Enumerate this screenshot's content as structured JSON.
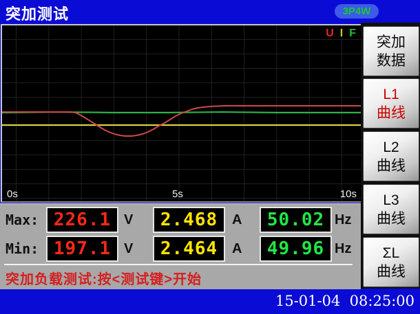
{
  "header": {
    "title": "突加测试",
    "badge": "3P4W"
  },
  "colors": {
    "background": "#0b0bd6",
    "panel_gray": "#a8a8a8",
    "status_red": "#d42020",
    "active_button_red": "#cc0000",
    "badge_bg": "#3d5ae8",
    "badge_text": "#18c838"
  },
  "chart": {
    "legend": [
      {
        "label": "U",
        "color": "#e02828"
      },
      {
        "label": "I",
        "color": "#c8c818"
      },
      {
        "label": "F",
        "color": "#18c040"
      }
    ],
    "x_ticks": [
      "0s",
      "5s",
      "10s"
    ]
  },
  "chart_data": {
    "type": "line",
    "title": "突加测试 waveform (L1)",
    "x_axis": {
      "ticks": [
        "0s",
        "5s",
        "10s"
      ],
      "range_seconds": [
        0,
        10
      ]
    },
    "note": "points are [x,y] in 522x256 plot pixel space, y=0 at top; U dips from ~226V to ~197V around t=3.5s then recovers, I and F stay flat",
    "series": [
      {
        "name": "F",
        "color": "#28b848",
        "width": 2,
        "points": [
          [
            0,
            127
          ],
          [
            80,
            126
          ],
          [
            160,
            127
          ],
          [
            240,
            127
          ],
          [
            320,
            126
          ],
          [
            400,
            127
          ],
          [
            522,
            127
          ]
        ]
      },
      {
        "name": "I",
        "color": "#d8d838",
        "width": 2,
        "points": [
          [
            0,
            145
          ],
          [
            522,
            145
          ]
        ]
      },
      {
        "name": "U",
        "color": "#d04848",
        "width": 2,
        "points": [
          [
            0,
            126
          ],
          [
            50,
            126
          ],
          [
            100,
            126
          ],
          [
            107,
            127
          ],
          [
            115,
            131
          ],
          [
            123,
            136
          ],
          [
            131,
            141
          ],
          [
            139,
            146
          ],
          [
            147,
            151
          ],
          [
            155,
            155
          ],
          [
            163,
            158
          ],
          [
            171,
            160
          ],
          [
            179,
            161
          ],
          [
            188,
            161
          ],
          [
            196,
            160
          ],
          [
            204,
            158
          ],
          [
            212,
            155
          ],
          [
            220,
            151
          ],
          [
            228,
            146
          ],
          [
            236,
            142
          ],
          [
            244,
            137
          ],
          [
            252,
            132
          ],
          [
            260,
            128
          ],
          [
            268,
            125
          ],
          [
            276,
            122
          ],
          [
            284,
            120
          ],
          [
            292,
            119
          ],
          [
            302,
            118
          ],
          [
            322,
            117
          ],
          [
            342,
            117
          ],
          [
            400,
            117
          ],
          [
            460,
            117
          ],
          [
            522,
            117
          ]
        ]
      }
    ]
  },
  "readings": {
    "columns": [
      {
        "unit": "V",
        "color": "#ff2818"
      },
      {
        "unit": "A",
        "color": "#ffe400"
      },
      {
        "unit": "Hz",
        "color": "#22e646"
      }
    ],
    "rows": [
      {
        "label": "Max:",
        "values": [
          "226.1",
          "2.468",
          "50.02"
        ]
      },
      {
        "label": "Min:",
        "values": [
          "197.1",
          "2.464",
          "49.96"
        ]
      }
    ]
  },
  "status": {
    "message": "突加负载测试:按<测试键>开始"
  },
  "sidebar": {
    "buttons": [
      {
        "id": "surge-data",
        "line1": "突加",
        "line2": "数据",
        "active": false
      },
      {
        "id": "l1-curve",
        "line1": "L1",
        "line2": "曲线",
        "active": true
      },
      {
        "id": "l2-curve",
        "line1": "L2",
        "line2": "曲线",
        "active": false
      },
      {
        "id": "l3-curve",
        "line1": "L3",
        "line2": "曲线",
        "active": false
      },
      {
        "id": "sum-l-curve",
        "line1": "ΣL",
        "line2": "曲线",
        "active": false
      }
    ]
  },
  "footer": {
    "datetime": "15-01-04  08:25:00"
  }
}
